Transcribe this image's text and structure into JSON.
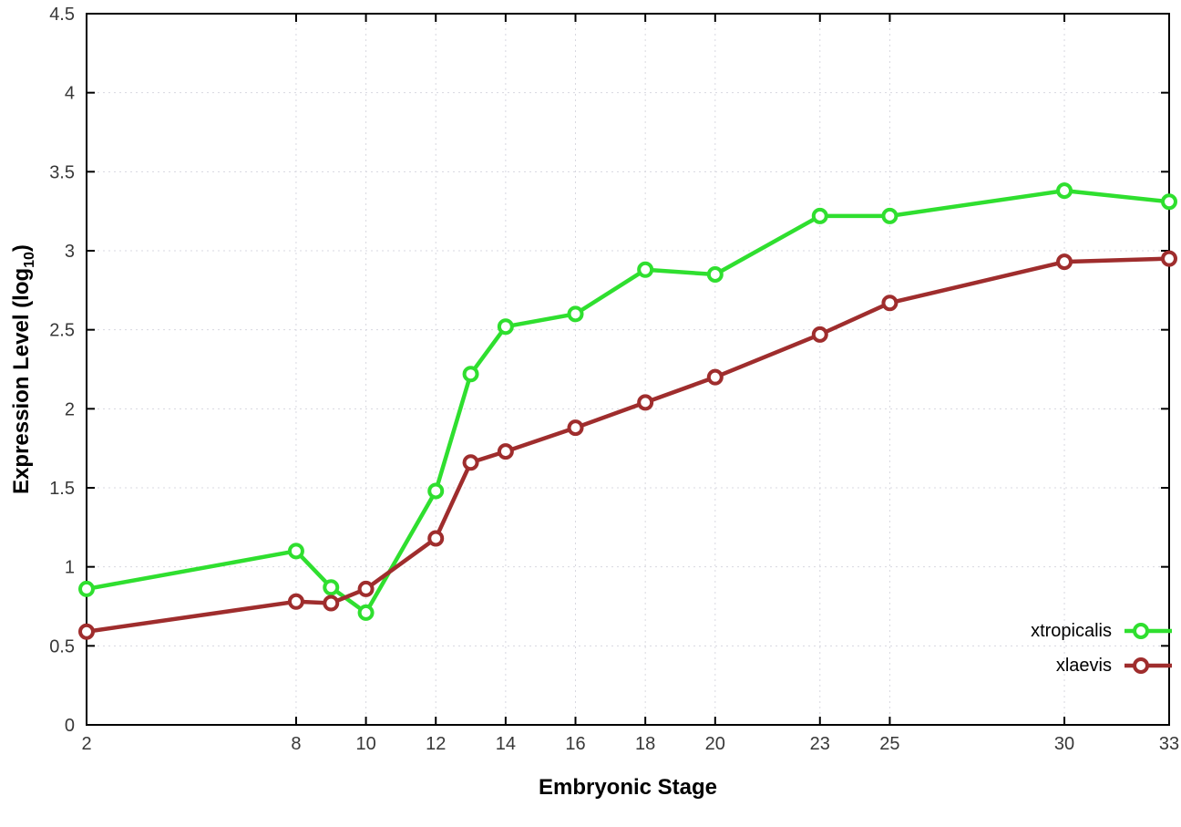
{
  "chart_data": {
    "type": "line",
    "title": "",
    "xlabel": "Embryonic Stage",
    "ylabel": "Expression Level (log10)",
    "ylabel_prefix": "Expression Level (log",
    "ylabel_sub": "10",
    "ylabel_suffix": ")",
    "x": [
      2,
      8,
      9,
      10,
      12,
      13,
      14,
      16,
      18,
      20,
      23,
      25,
      30,
      33
    ],
    "series": [
      {
        "name": "xtropicalis",
        "color": "#2fdf2f",
        "values": [
          0.86,
          1.1,
          0.87,
          0.71,
          1.48,
          2.22,
          2.52,
          2.6,
          2.88,
          2.85,
          3.22,
          3.22,
          3.38,
          3.31
        ]
      },
      {
        "name": "xlaevis",
        "color": "#9f2d2d",
        "values": [
          0.59,
          0.78,
          0.77,
          0.86,
          1.18,
          1.66,
          1.73,
          1.88,
          2.04,
          2.2,
          2.47,
          2.67,
          2.93,
          2.95
        ]
      }
    ],
    "xlim": [
      2,
      33
    ],
    "ylim": [
      0,
      4.5
    ],
    "x_ticks": [
      2,
      8,
      10,
      12,
      14,
      16,
      18,
      20,
      23,
      25,
      30,
      33
    ],
    "y_ticks": [
      0,
      0.5,
      1,
      1.5,
      2,
      2.5,
      3,
      3.5,
      4,
      4.5
    ],
    "grid": true,
    "legend_position": "bottom-right",
    "legend": [
      "xtropicalis",
      "xlaevis"
    ]
  },
  "colors": {
    "background": "#ffffff",
    "axis": "#000000",
    "grid": "#d8d8e0",
    "tick_label": "#383838",
    "marker_fill": "#ffffff"
  }
}
